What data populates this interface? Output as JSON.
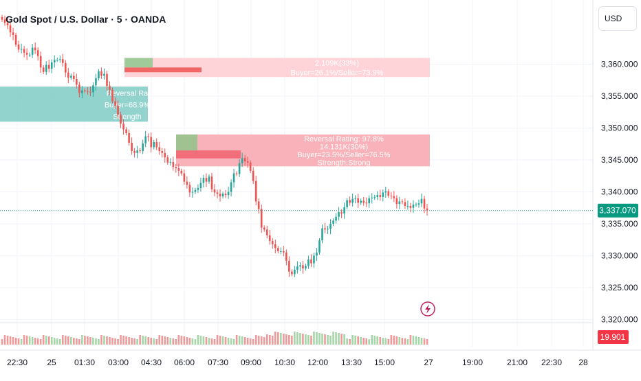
{
  "chart_data": {
    "type": "candlestick",
    "title": "Gold Spot / U.S. Dollar · 5 · OANDA",
    "currency": "USD",
    "y_ticks": [
      3320,
      3325,
      3330,
      3335,
      3340,
      3345,
      3350,
      3355,
      3360
    ],
    "y_tick_labels": [
      "3,320.000",
      "3,325.000",
      "3,330.000",
      "3,335.000",
      "3,340.000",
      "3,345.000",
      "3,350.000",
      "3,355.000",
      "3,360.000"
    ],
    "ylim": [
      3319.5,
      3369
    ],
    "x_ticks": [
      "22:30",
      "25",
      "01:30",
      "03:00",
      "04:30",
      "06:00",
      "07:30",
      "09:00",
      "10:30",
      "12:00",
      "13:30",
      "15:00",
      "27",
      "19:00",
      "21:00",
      "22:30",
      "28"
    ],
    "last_price": 3337.07,
    "last_price_label": "3,337.070",
    "volume_label": "19.901",
    "candles_close": [
      3367.0,
      3366.5,
      3366.1,
      3365.0,
      3364.6,
      3363.1,
      3362.3,
      3362.4,
      3361.8,
      3361.5,
      3361.5,
      3362.6,
      3362.2,
      3361.3,
      3359.5,
      3358.8,
      3359.9,
      3359.3,
      3360.3,
      3360.7,
      3360.7,
      3360.8,
      3360.2,
      3358.7,
      3357.9,
      3358.2,
      3357.7,
      3356.8,
      3355.5,
      3355.9,
      3355.8,
      3355.7,
      3355.6,
      3356.7,
      3357.8,
      3358.9,
      3358.2,
      3358.5,
      3356.6,
      3356.0,
      3354.2,
      3353.5,
      3352.1,
      3350.7,
      3349.8,
      3349.2,
      3347.7,
      3346.4,
      3346.1,
      3346.5,
      3346.4,
      3347.6,
      3348.7,
      3348.6,
      3347.0,
      3347.8,
      3347.0,
      3346.4,
      3346.1,
      3345.4,
      3344.6,
      3344.7,
      3343.9,
      3343.7,
      3343.3,
      3342.9,
      3341.6,
      3341.1,
      3339.9,
      3340.0,
      3340.3,
      3340.6,
      3341.4,
      3342.2,
      3341.6,
      3342.4,
      3340.4,
      3339.9,
      3339.7,
      3339.3,
      3339.7,
      3339.5,
      3340.0,
      3341.5,
      3342.9,
      3342.8,
      3344.5,
      3345.3,
      3344.8,
      3344.6,
      3343.3,
      3341.7,
      3338.5,
      3337.3,
      3334.4,
      3334.1,
      3333.2,
      3332.3,
      3331.8,
      3331.2,
      3330.7,
      3330.7,
      3330.5,
      3329.2,
      3327.5,
      3327.1,
      3327.8,
      3328.3,
      3328.5,
      3328.0,
      3328.4,
      3329.4,
      3328.8,
      3330.0,
      3330.5,
      3332.4,
      3334.3,
      3334.1,
      3334.2,
      3335.0,
      3335.5,
      3336.1,
      3336.8,
      3336.6,
      3337.6,
      3338.7,
      3338.3,
      3338.9,
      3339.0,
      3338.3,
      3338.6,
      3338.3,
      3338.2,
      3339.0,
      3339.1,
      3339.2,
      3339.5,
      3339.2,
      3339.9,
      3340.1,
      3339.4,
      3339.3,
      3339.0,
      3338.1,
      3338.5,
      3338.4,
      3337.8,
      3337.8,
      3337.5,
      3338.0,
      3338.0,
      3338.2,
      3338.9,
      3337.4,
      3337.1
    ],
    "zones": [
      {
        "top": 3361.0,
        "bottom": 3358.0,
        "lines": [
          "2.109K(33%)",
          "Buyer=26.1%/Seller=73.9%"
        ]
      },
      {
        "top": 3356.5,
        "bottom": 3351.0,
        "lines": [
          "Reversal Ra",
          "Buyer=68.9%",
          "Strength"
        ]
      },
      {
        "top": 3349.0,
        "bottom": 3344.0,
        "lines": [
          "Reversal Rating: 97.8%",
          "14.131K(30%)",
          "Buyer=23.5%/Seller=76.5%",
          "Strength:Strong"
        ]
      }
    ]
  }
}
